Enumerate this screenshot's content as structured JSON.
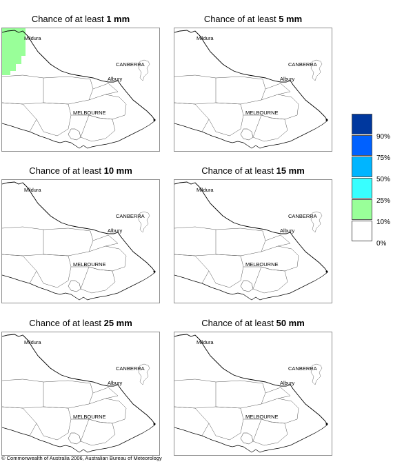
{
  "panels": [
    {
      "prefix": "Chance of at least ",
      "amount": "1 mm",
      "shaded": true
    },
    {
      "prefix": "Chance of at least ",
      "amount": "5 mm",
      "shaded": false
    },
    {
      "prefix": "Chance of at least ",
      "amount": "10 mm",
      "shaded": false
    },
    {
      "prefix": "Chance of at least ",
      "amount": "15 mm",
      "shaded": false
    },
    {
      "prefix": "Chance of at least ",
      "amount": "25 mm",
      "shaded": false
    },
    {
      "prefix": "Chance of at least ",
      "amount": "50 mm",
      "shaded": false
    }
  ],
  "map_labels": {
    "mildura": "Mildura",
    "canberra": "CANBERRA",
    "albury": "Albury",
    "melbourne": "MELBOURNE"
  },
  "shading": {
    "panel_1mm_band": "10% - 25%",
    "color": "#99ff99"
  },
  "legend": {
    "swatches": [
      {
        "color": "#00389e",
        "label": "90%"
      },
      {
        "color": "#0061ff",
        "label": "75%"
      },
      {
        "color": "#00b5ff",
        "label": "50%"
      },
      {
        "color": "#38ffff",
        "label": "25%"
      },
      {
        "color": "#99ff99",
        "label": "10%"
      },
      {
        "color": "#ffffff",
        "label": "0%"
      }
    ]
  },
  "copyright": "© Commonwealth of Australia 2006, Australian Bureau of Meteorology"
}
